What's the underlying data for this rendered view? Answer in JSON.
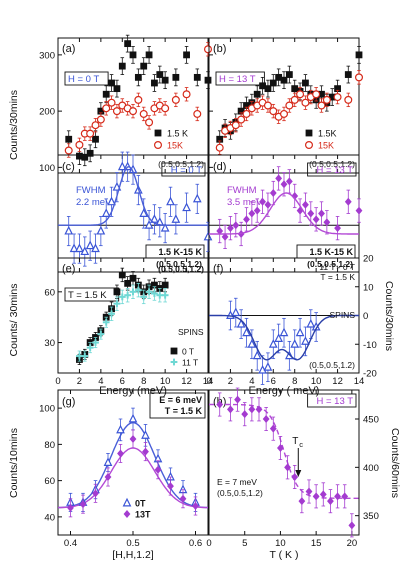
{
  "figure": {
    "ylabel_left_top": "Counts/30mins",
    "ylabel_left_mid": "Counts/ 30mins",
    "ylabel_right_mid": "Counts/30mins",
    "ylabel_left_bottom": "Counts/10mins",
    "ylabel_right_bottom": "Counts/60mins",
    "xlabel_energy_left": "Energy (meV)",
    "xlabel_energy_right": "Energy ( meV)",
    "xlabel_hh": "[H,H,1.2]",
    "xlabel_t": "T ( K )"
  },
  "colors": {
    "black": "#111111",
    "red": "#d62a1a",
    "blue": "#3b55d6",
    "purple": "#a43bd0",
    "cyan": "#6fd8d4",
    "fitblue": "#4a5fd8",
    "fitpurple": "#b34ad6"
  },
  "chart_data": [
    {
      "id": "a",
      "type": "scatter",
      "panel_label": "(a)",
      "field_label": "H = 0 T",
      "qlabel": "(0.5,0.5,1.2)",
      "xlim": [
        0,
        14
      ],
      "ylim": [
        90,
        330
      ],
      "yticks": [
        100,
        200,
        300
      ],
      "series": [
        {
          "name": "1.5 K",
          "marker": "square",
          "color": "#111111",
          "x": [
            1,
            2,
            2.5,
            3,
            3.5,
            4,
            4.5,
            5,
            5.5,
            6,
            6.5,
            7,
            7.5,
            8,
            8.5,
            9,
            9.5,
            10,
            11,
            12,
            13,
            14
          ],
          "y": [
            150,
            120,
            118,
            125,
            150,
            200,
            230,
            250,
            240,
            280,
            320,
            300,
            260,
            280,
            300,
            250,
            265,
            255,
            260,
            300,
            260,
            255
          ],
          "err": [
            15,
            15,
            15,
            15,
            15,
            15,
            15,
            15,
            15,
            15,
            15,
            15,
            15,
            15,
            15,
            15,
            15,
            15,
            15,
            15,
            15,
            15
          ]
        },
        {
          "name": "15K",
          "marker": "circle-open",
          "color": "#d62a1a",
          "x": [
            1,
            2,
            2.5,
            3,
            3.5,
            4,
            4.5,
            5,
            5.5,
            6,
            6.5,
            7,
            7.5,
            8,
            8.5,
            9,
            9.5,
            10,
            11,
            12,
            13,
            14
          ],
          "y": [
            130,
            140,
            160,
            160,
            175,
            185,
            205,
            215,
            200,
            210,
            205,
            200,
            220,
            195,
            180,
            205,
            210,
            205,
            220,
            230,
            195,
            310
          ],
          "err": [
            12,
            12,
            12,
            12,
            12,
            12,
            12,
            12,
            12,
            12,
            12,
            12,
            12,
            12,
            12,
            12,
            12,
            12,
            12,
            12,
            12,
            12
          ]
        }
      ]
    },
    {
      "id": "b",
      "type": "scatter",
      "panel_label": "(b)",
      "field_label": "H = 13 T",
      "qlabel": "(0.5,0.5,1.2)",
      "xlim": [
        0,
        14
      ],
      "ylim": [
        90,
        330
      ],
      "yticks": [
        100,
        200,
        300
      ],
      "series": [
        {
          "name": "1.5K",
          "marker": "square",
          "color": "#111111",
          "x": [
            1,
            1.5,
            2,
            2.5,
            3,
            3.5,
            4,
            4.5,
            5,
            5.5,
            6,
            6.5,
            7,
            7.5,
            8,
            8.5,
            9,
            9.5,
            10,
            10.5,
            11,
            11.5,
            12,
            13,
            14
          ],
          "y": [
            150,
            170,
            165,
            180,
            200,
            210,
            215,
            230,
            245,
            240,
            250,
            260,
            255,
            265,
            240,
            235,
            250,
            230,
            220,
            230,
            215,
            225,
            240,
            265,
            300
          ],
          "err": [
            15,
            15,
            15,
            15,
            15,
            15,
            15,
            15,
            15,
            15,
            15,
            15,
            15,
            15,
            15,
            15,
            15,
            15,
            15,
            15,
            15,
            15,
            15,
            15,
            15
          ]
        },
        {
          "name": "15K",
          "marker": "circle-open",
          "color": "#d62a1a",
          "x": [
            1,
            1.5,
            2,
            2.5,
            3,
            3.5,
            4,
            4.5,
            5,
            5.5,
            6,
            6.5,
            7,
            7.5,
            8,
            8.5,
            9,
            9.5,
            10,
            10.5,
            11,
            12,
            13,
            14
          ],
          "y": [
            135,
            165,
            170,
            175,
            185,
            195,
            205,
            210,
            215,
            210,
            200,
            190,
            195,
            210,
            220,
            230,
            215,
            225,
            230,
            210,
            220,
            225,
            220,
            260
          ],
          "err": [
            12,
            12,
            12,
            12,
            12,
            12,
            12,
            12,
            12,
            12,
            12,
            12,
            12,
            12,
            12,
            12,
            12,
            12,
            12,
            12,
            12,
            12,
            12,
            12
          ]
        }
      ]
    },
    {
      "id": "c",
      "type": "scatter",
      "panel_label": "(c)",
      "field_label": "H = 0 T",
      "note": "FWHM\n2.2 meV",
      "diff_label": "1.5 K-15 K",
      "qlabel": "(0.5,0.5,1.2)",
      "xlim": [
        0,
        14
      ],
      "ylim": [
        -80,
        120
      ],
      "zero_line": true,
      "series": [
        {
          "name": "diff",
          "marker": "triangle-open",
          "color": "#3b55d6",
          "x": [
            1,
            1.5,
            2,
            2.5,
            3,
            3.5,
            4,
            4.5,
            5,
            5.5,
            6,
            6.5,
            7,
            7.5,
            8,
            8.5,
            9,
            9.5,
            10,
            10.5,
            11,
            12,
            13,
            14
          ],
          "y": [
            -10,
            -40,
            -40,
            -45,
            -35,
            -40,
            -10,
            20,
            40,
            65,
            100,
            100,
            95,
            60,
            20,
            0,
            10,
            5,
            -5,
            40,
            10,
            30,
            45,
            -20
          ],
          "err": [
            25,
            25,
            25,
            25,
            25,
            25,
            25,
            25,
            25,
            25,
            25,
            25,
            25,
            25,
            25,
            25,
            25,
            25,
            25,
            25,
            25,
            25,
            25,
            25
          ]
        }
      ],
      "fit": {
        "type": "gaussian",
        "center": 6.6,
        "fwhm": 2.2,
        "amplitude": 100,
        "baseline": 0,
        "color": "#4a5fd8"
      }
    },
    {
      "id": "d",
      "type": "scatter",
      "panel_label": "(d)",
      "field_label": "H = 13 T",
      "note": "FWHM\n3.5 meV",
      "diff_label": "1.5 K-15 K",
      "qlabel": "(0.5,0.5,1.2)",
      "xlim": [
        0,
        14
      ],
      "ylim": [
        -80,
        120
      ],
      "zero_line": true,
      "series": [
        {
          "name": "diff",
          "marker": "diamond",
          "color": "#a43bd0",
          "x": [
            1,
            1.5,
            2,
            2.5,
            3,
            3.5,
            4,
            4.5,
            5,
            5.5,
            6,
            6.5,
            7,
            7.5,
            8,
            8.5,
            9,
            9.5,
            10,
            10.5,
            11,
            12,
            13,
            14
          ],
          "y": [
            -10,
            -20,
            -5,
            0,
            -15,
            10,
            20,
            25,
            40,
            35,
            55,
            80,
            70,
            75,
            50,
            25,
            35,
            20,
            10,
            20,
            5,
            -5,
            40,
            25
          ],
          "err": [
            20,
            20,
            20,
            20,
            20,
            20,
            20,
            20,
            20,
            20,
            20,
            20,
            20,
            20,
            20,
            20,
            20,
            20,
            20,
            20,
            20,
            20,
            20,
            20
          ]
        }
      ],
      "fit": {
        "type": "gaussian",
        "center": 7.2,
        "fwhm": 3.5,
        "amplitude": 70,
        "baseline": -15,
        "color": "#b34ad6"
      }
    },
    {
      "id": "e",
      "type": "scatter",
      "panel_label": "(e)",
      "field_label": "T = 1.5 K",
      "qlabel": "(0.5,0.5,1.2)",
      "instrument": "SPINS",
      "xlim": [
        0,
        14
      ],
      "ylim": [
        12,
        80
      ],
      "yticks": [
        30,
        60
      ],
      "xticks": [
        0,
        2,
        4,
        6,
        8,
        10,
        12,
        14
      ],
      "series": [
        {
          "name": "0 T",
          "marker": "square",
          "color": "#111111",
          "x": [
            2,
            2.5,
            3,
            3.5,
            4,
            4.5,
            5,
            5.5,
            6,
            6.5,
            7,
            7.5,
            8,
            8.5,
            9,
            9.5,
            10
          ],
          "y": [
            20,
            23,
            30,
            33,
            37,
            45,
            50,
            60,
            70,
            65,
            68,
            64,
            60,
            63,
            64,
            62,
            64
          ],
          "err": [
            3,
            3,
            3,
            3,
            3,
            3,
            4,
            4,
            4,
            4,
            4,
            4,
            4,
            4,
            4,
            4,
            4
          ]
        },
        {
          "name": "11 T",
          "marker": "cross",
          "color": "#6fd8d4",
          "x": [
            2,
            2.5,
            3,
            3.5,
            4,
            4.5,
            5,
            5.5,
            6,
            6.5,
            7,
            7.5,
            8,
            8.5,
            9,
            9.5,
            10
          ],
          "y": [
            22,
            22,
            27,
            30,
            35,
            42,
            47,
            53,
            57,
            58,
            60,
            61,
            57,
            60,
            59,
            58,
            58
          ],
          "err": [
            3,
            3,
            3,
            3,
            3,
            3,
            4,
            4,
            4,
            4,
            4,
            4,
            4,
            4,
            4,
            4,
            4
          ]
        }
      ]
    },
    {
      "id": "f",
      "type": "scatter",
      "panel_label": "(f)",
      "field_label": "11 T - 0 T\nT = 1.5 K",
      "qlabel": "(0.5,0.5,1.2)",
      "instrument": "SPINS",
      "xlim": [
        0,
        14
      ],
      "ylim": [
        -20,
        20
      ],
      "yticks": [
        -20,
        -10,
        0,
        10,
        20
      ],
      "xticks": [
        0,
        2,
        4,
        6,
        8,
        10,
        12,
        14
      ],
      "zero_line": true,
      "series": [
        {
          "name": "diff",
          "marker": "triangle-open",
          "color": "#3b55d6",
          "x": [
            2,
            2.5,
            3,
            3.5,
            4,
            4.5,
            5,
            5.5,
            6,
            6.5,
            7,
            7.5,
            8,
            8.5,
            9,
            9.5,
            10
          ],
          "y": [
            0,
            1,
            -3,
            -6,
            -10,
            -14,
            -19,
            -18,
            -10,
            -8,
            -6,
            -14,
            -10,
            -6,
            -9,
            -3,
            -4
          ],
          "err": [
            5,
            5,
            5,
            5,
            5,
            5,
            5,
            5,
            5,
            5,
            5,
            5,
            5,
            5,
            5,
            5,
            5
          ]
        }
      ],
      "fit": {
        "type": "double-gaussian",
        "centers": [
          5.3,
          8.3
        ],
        "sigma": 1.1,
        "amplitude": -15,
        "baseline": 0,
        "color": "#2a3fa8"
      }
    },
    {
      "id": "g",
      "type": "scatter",
      "panel_label": "(g)",
      "field_label": "E = 6 meV\nT = 1.5 K",
      "xlim": [
        0.38,
        0.62
      ],
      "ylim": [
        30,
        110
      ],
      "xticks": [
        0.4,
        0.5,
        0.6
      ],
      "yticks": [
        40,
        60,
        80,
        100
      ],
      "series": [
        {
          "name": "0T",
          "marker": "triangle-open",
          "color": "#3b55d6",
          "x": [
            0.4,
            0.42,
            0.44,
            0.46,
            0.48,
            0.5,
            0.52,
            0.54,
            0.56,
            0.58,
            0.6
          ],
          "y": [
            48,
            48,
            55,
            70,
            88,
            94,
            85,
            72,
            62,
            55,
            48
          ],
          "err": [
            5,
            5,
            5,
            5,
            6,
            6,
            6,
            5,
            5,
            5,
            5
          ]
        },
        {
          "name": "13T",
          "marker": "diamond",
          "color": "#a43bd0",
          "x": [
            0.4,
            0.42,
            0.44,
            0.46,
            0.48,
            0.5,
            0.52,
            0.54,
            0.56,
            0.58,
            0.6
          ],
          "y": [
            45,
            47,
            53,
            62,
            75,
            83,
            76,
            66,
            57,
            50,
            46
          ],
          "err": [
            5,
            5,
            5,
            5,
            5,
            5,
            5,
            5,
            5,
            5,
            5
          ]
        }
      ],
      "fits": [
        {
          "type": "gaussian",
          "center": 0.5,
          "sigma": 0.035,
          "amplitude": 47,
          "baseline": 45,
          "color": "#4a5fd8"
        },
        {
          "type": "gaussian",
          "center": 0.5,
          "sigma": 0.035,
          "amplitude": 33,
          "baseline": 45,
          "color": "#b34ad6"
        }
      ]
    },
    {
      "id": "h",
      "type": "scatter",
      "panel_label": "(h)",
      "field_label": "H = 13 T",
      "note": "E = 7 meV\n(0.5,0.5,1.2)",
      "tc_label": "T",
      "tc_sub": "c",
      "tc_value": 12.5,
      "xlim": [
        0,
        21
      ],
      "ylim": [
        330,
        480
      ],
      "xticks": [
        0,
        5,
        10,
        15,
        20
      ],
      "yticks": [
        350,
        400,
        450
      ],
      "series": [
        {
          "name": "13T",
          "marker": "diamond",
          "color": "#a43bd0",
          "x": [
            1.5,
            3,
            4,
            5,
            6,
            7,
            8,
            9,
            10,
            11,
            12,
            13,
            14,
            15,
            16,
            17,
            18,
            19,
            20
          ],
          "y": [
            465,
            460,
            470,
            455,
            460,
            460,
            450,
            440,
            420,
            400,
            390,
            365,
            375,
            370,
            372,
            365,
            370,
            370,
            340
          ],
          "err": [
            12,
            12,
            12,
            12,
            12,
            12,
            12,
            12,
            12,
            12,
            12,
            12,
            12,
            12,
            12,
            12,
            12,
            12,
            12
          ]
        }
      ],
      "fit": {
        "type": "sigmoid",
        "high": 465,
        "low": 368,
        "center": 10.5,
        "width": 1.0,
        "color": "#b34ad6",
        "dashed": true
      }
    }
  ]
}
